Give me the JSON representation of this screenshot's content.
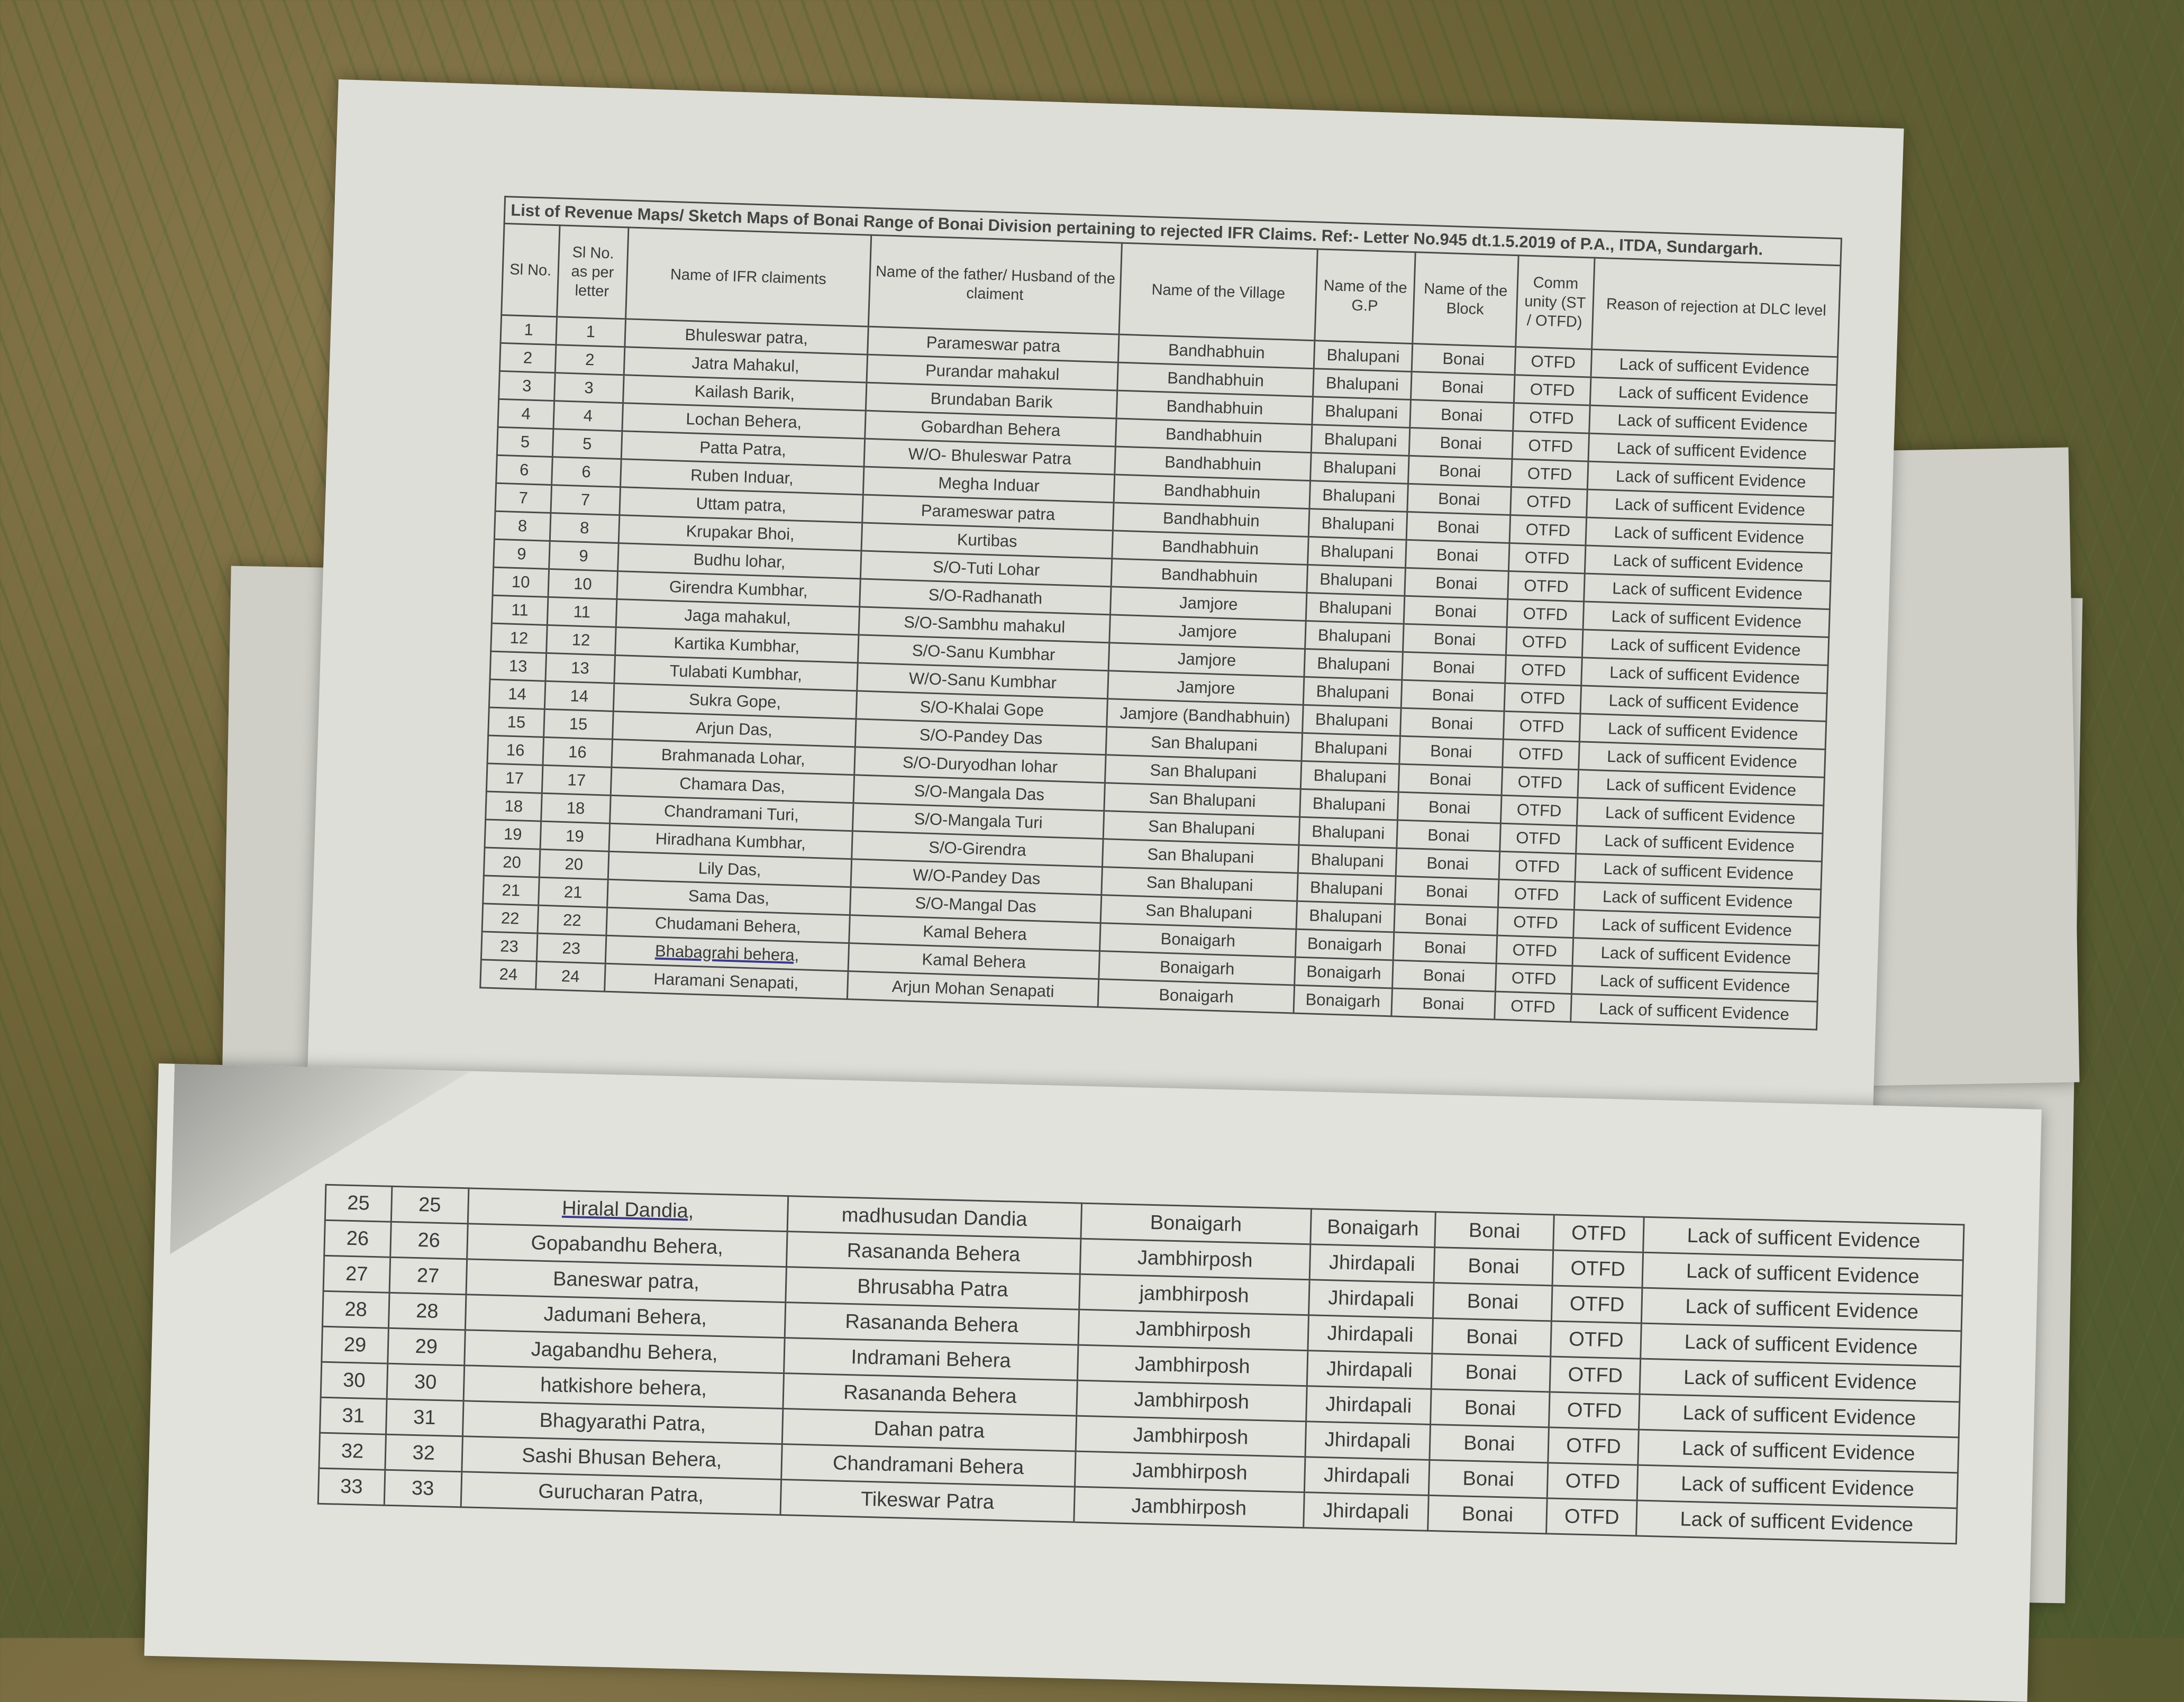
{
  "document": {
    "title": "List of Revenue Maps/ Sketch Maps of Bonai Range of Bonai Division pertaining to rejected IFR Claims. Ref:- Letter No.945 dt.1.5.2019 of P.A., ITDA, Sundargarh.",
    "headers": [
      "Sl No.",
      "Sl No. as per letter",
      "Name of IFR claiments",
      "Name of the father/ Husband of the claiment",
      "Name of the Village",
      "Name of the G.P",
      "Name of the Block",
      "Comm unity (ST / OTFD)",
      "Reason of rejection at DLC level"
    ],
    "rows_top": [
      [
        "1",
        "1",
        "Bhuleswar patra,",
        "Parameswar patra",
        "",
        "",
        "",
        "",
        ""
      ],
      [
        "2",
        "2",
        "Jatra Mahakul,",
        "Purandar mahakul",
        "Bandhabhuin",
        "Bhalupani",
        "Bonai",
        "OTFD",
        "Lack of sufficent Evidence"
      ],
      [
        "3",
        "3",
        "Kailash Barik,",
        "Brundaban Barik",
        "Bandhabhuin",
        "Bhalupani",
        "Bonai",
        "OTFD",
        "Lack of sufficent Evidence"
      ],
      [
        "4",
        "4",
        "Lochan Behera,",
        "Gobardhan Behera",
        "Bandhabhuin",
        "Bhalupani",
        "Bonai",
        "OTFD",
        "Lack of sufficent Evidence"
      ],
      [
        "5",
        "5",
        "Patta Patra,",
        "W/O- Bhuleswar Patra",
        "Bandhabhuin",
        "Bhalupani",
        "Bonai",
        "OTFD",
        "Lack of sufficent Evidence"
      ],
      [
        "6",
        "6",
        "Ruben Induar,",
        "Megha Induar",
        "Bandhabhuin",
        "Bhalupani",
        "Bonai",
        "OTFD",
        "Lack of sufficent Evidence"
      ],
      [
        "7",
        "7",
        "Uttam patra,",
        "Parameswar patra",
        "Bandhabhuin",
        "Bhalupani",
        "Bonai",
        "OTFD",
        "Lack of sufficent Evidence"
      ],
      [
        "8",
        "8",
        "Krupakar Bhoi,",
        "Kurtibas",
        "Bandhabhuin",
        "Bhalupani",
        "Bonai",
        "OTFD",
        "Lack of sufficent Evidence"
      ],
      [
        "9",
        "9",
        "Budhu lohar,",
        "S/O-Tuti Lohar",
        "Bandhabhuin",
        "Bhalupani",
        "Bonai",
        "OTFD",
        "Lack of sufficent Evidence"
      ],
      [
        "10",
        "10",
        "Girendra Kumbhar,",
        "S/O-Radhanath",
        "Jamjore",
        "Bhalupani",
        "Bonai",
        "OTFD",
        "Lack of sufficent Evidence"
      ],
      [
        "11",
        "11",
        "Jaga mahakul,",
        "S/O-Sambhu mahakul",
        "Jamjore",
        "Bhalupani",
        "Bonai",
        "OTFD",
        "Lack of sufficent Evidence"
      ],
      [
        "12",
        "12",
        "Kartika Kumbhar,",
        "S/O-Sanu Kumbhar",
        "Jamjore",
        "Bhalupani",
        "Bonai",
        "OTFD",
        "Lack of sufficent Evidence"
      ],
      [
        "13",
        "13",
        "Tulabati Kumbhar,",
        "W/O-Sanu Kumbhar",
        "Jamjore",
        "Bhalupani",
        "Bonai",
        "OTFD",
        "Lack of sufficent Evidence"
      ],
      [
        "14",
        "14",
        "Sukra Gope,",
        "S/O-Khalai Gope",
        "Jamjore (Bandhabhuin)",
        "Bhalupani",
        "Bonai",
        "OTFD",
        "Lack of sufficent Evidence"
      ],
      [
        "15",
        "15",
        "Arjun Das,",
        "S/O-Pandey Das",
        "San Bhalupani",
        "Bhalupani",
        "Bonai",
        "OTFD",
        "Lack of sufficent Evidence"
      ],
      [
        "16",
        "16",
        "Brahmanada Lohar,",
        "S/O-Duryodhan lohar",
        "San Bhalupani",
        "Bhalupani",
        "Bonai",
        "OTFD",
        "Lack of sufficent Evidence"
      ],
      [
        "17",
        "17",
        "Chamara Das,",
        "S/O-Mangala Das",
        "San Bhalupani",
        "Bhalupani",
        "Bonai",
        "OTFD",
        "Lack of sufficent Evidence"
      ],
      [
        "18",
        "18",
        "Chandramani Turi,",
        "S/O-Mangala Turi",
        "San Bhalupani",
        "Bhalupani",
        "Bonai",
        "OTFD",
        "Lack of sufficent Evidence"
      ],
      [
        "19",
        "19",
        "Hiradhana Kumbhar,",
        "S/O-Girendra",
        "San Bhalupani",
        "Bhalupani",
        "Bonai",
        "OTFD",
        "Lack of sufficent Evidence"
      ],
      [
        "20",
        "20",
        "Lily Das,",
        "W/O-Pandey Das",
        "San Bhalupani",
        "Bhalupani",
        "Bonai",
        "OTFD",
        "Lack of sufficent Evidence"
      ],
      [
        "21",
        "21",
        "Sama Das,",
        "S/O-Mangal Das",
        "San Bhalupani",
        "Bhalupani",
        "Bonai",
        "OTFD",
        "Lack of sufficent Evidence"
      ],
      [
        "22",
        "22",
        "Chudamani Behera,",
        "Kamal Behera",
        "Bonaigarh",
        "Bonaigarh",
        "Bonai",
        "OTFD",
        "Lack of sufficent Evidence"
      ],
      [
        "23",
        "23",
        "Bhabagrahi behera,",
        "Kamal Behera",
        "Bonaigarh",
        "Bonaigarh",
        "Bonai",
        "OTFD",
        "Lack of sufficent Evidence"
      ],
      [
        "24",
        "24",
        "Haramani Senapati,",
        "Arjun Mohan Senapati",
        "Bonaigarh",
        "Bonaigarh",
        "Bonai",
        "OTFD",
        "Lack of sufficent Evidence"
      ]
    ],
    "rows_bottom": [
      [
        "25",
        "25",
        "Hiralal Dandia,",
        "madhusudan Dandia",
        "Bonaigarh",
        "Bonaigarh",
        "Bonai",
        "OTFD",
        "Lack of sufficent Evidence"
      ],
      [
        "26",
        "26",
        "Gopabandhu Behera,",
        "Rasananda Behera",
        "Jambhirposh",
        "Jhirdapali",
        "Bonai",
        "OTFD",
        "Lack of sufficent Evidence"
      ],
      [
        "27",
        "27",
        "Baneswar patra,",
        "Bhrusabha Patra",
        "jambhirposh",
        "Jhirdapali",
        "Bonai",
        "OTFD",
        "Lack of sufficent Evidence"
      ],
      [
        "28",
        "28",
        "Jadumani Behera,",
        "Rasananda Behera",
        "Jambhirposh",
        "Jhirdapali",
        "Bonai",
        "OTFD",
        "Lack of sufficent Evidence"
      ],
      [
        "29",
        "29",
        "Jagabandhu Behera,",
        "Indramani Behera",
        "Jambhirposh",
        "Jhirdapali",
        "Bonai",
        "OTFD",
        "Lack of sufficent Evidence"
      ],
      [
        "30",
        "30",
        "hatkishore behera,",
        "Rasananda Behera",
        "Jambhirposh",
        "Jhirdapali",
        "Bonai",
        "OTFD",
        "Lack of sufficent Evidence"
      ],
      [
        "31",
        "31",
        "Bhagyarathi Patra,",
        "Dahan patra",
        "Jambhirposh",
        "Jhirdapali",
        "Bonai",
        "OTFD",
        "Lack of sufficent Evidence"
      ],
      [
        "32",
        "32",
        "Sashi Bhusan Behera,",
        "Chandramani Behera",
        "Jambhirposh",
        "Jhirdapali",
        "Bonai",
        "OTFD",
        "Lack of sufficent Evidence"
      ],
      [
        "33",
        "33",
        "Gurucharan Patra,",
        "Tikeswar Patra",
        "Jambhirposh",
        "Jhirdapali",
        "Bonai",
        "OTFD",
        "Lack of sufficent Evidence"
      ]
    ],
    "row1_village_gp": [
      "Bandhabhuin",
      "Bhalupani",
      "Bonai",
      "OTFD",
      "Lack of sufficent Evidence"
    ]
  }
}
